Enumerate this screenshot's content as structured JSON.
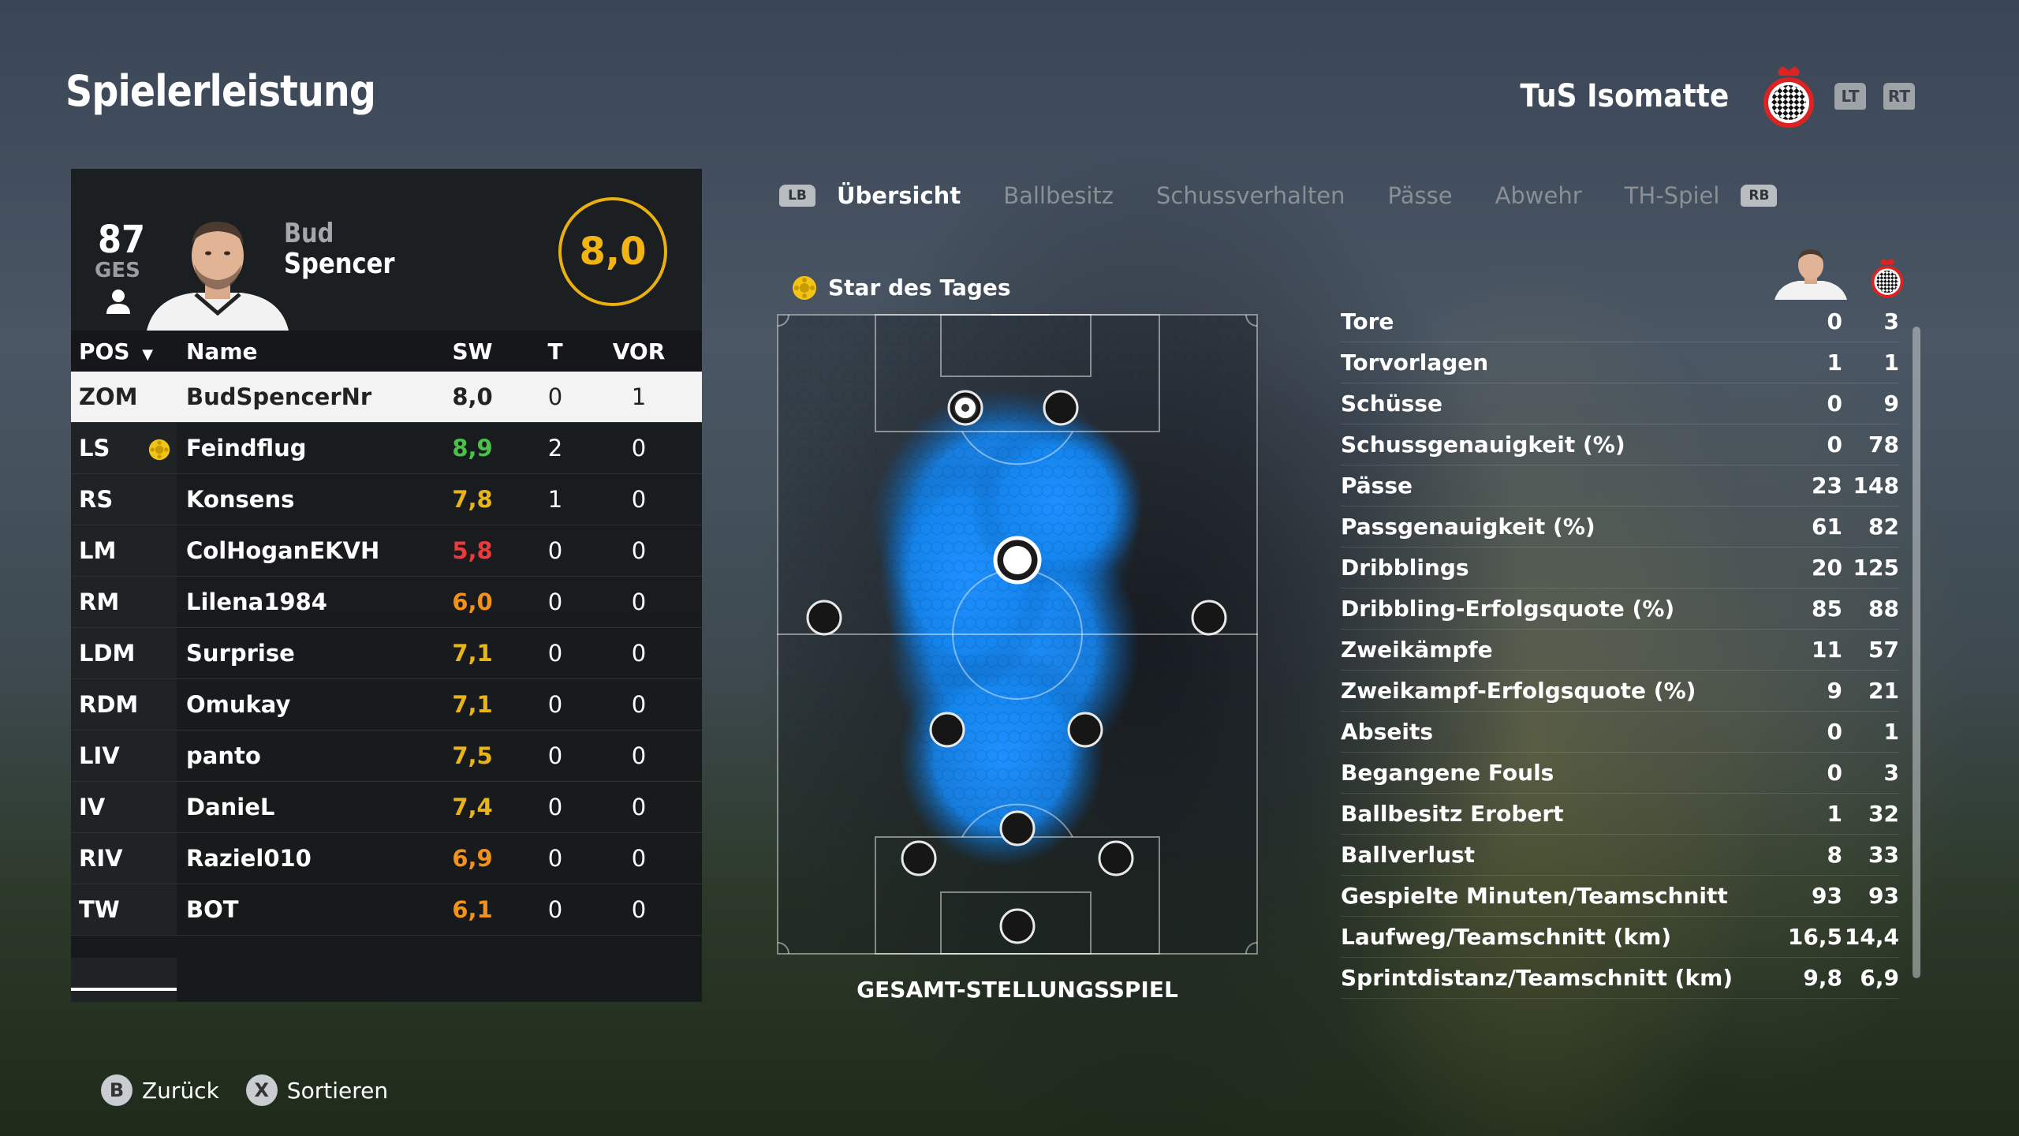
{
  "header": {
    "title": "Spielerleistung",
    "team_name": "TuS Isomatte",
    "trigger_left": "LT",
    "trigger_right": "RT"
  },
  "player": {
    "ovr": "87",
    "ovr_label": "GES",
    "first_name": "Bud",
    "last_name": "Spencer",
    "rating": "8,0"
  },
  "table": {
    "headers": {
      "pos": "POS",
      "name": "Name",
      "sw": "SW",
      "t": "T",
      "vor": "VOR"
    },
    "rows": [
      {
        "pos": "ZOM",
        "name": "BudSpencerNr",
        "sw": "8,0",
        "t": "0",
        "vor": "1",
        "color": "#222222",
        "selected": true
      },
      {
        "pos": "LS",
        "name": "Feindflug",
        "sw": "8,9",
        "t": "2",
        "vor": "0",
        "color": "#4cc14a",
        "star": true
      },
      {
        "pos": "RS",
        "name": "Konsens",
        "sw": "7,8",
        "t": "1",
        "vor": "0",
        "color": "#e9b41a"
      },
      {
        "pos": "LM",
        "name": "ColHoganEKVH",
        "sw": "5,8",
        "t": "0",
        "vor": "0",
        "color": "#ea3b3b"
      },
      {
        "pos": "RM",
        "name": "Lilena1984",
        "sw": "6,0",
        "t": "0",
        "vor": "0",
        "color": "#f0921c"
      },
      {
        "pos": "LDM",
        "name": "Surprise",
        "sw": "7,1",
        "t": "0",
        "vor": "0",
        "color": "#e9b41a"
      },
      {
        "pos": "RDM",
        "name": "Omukay",
        "sw": "7,1",
        "t": "0",
        "vor": "0",
        "color": "#e9b41a"
      },
      {
        "pos": "LIV",
        "name": "panto",
        "sw": "7,5",
        "t": "0",
        "vor": "0",
        "color": "#e9b41a"
      },
      {
        "pos": "IV",
        "name": "DanieL",
        "sw": "7,4",
        "t": "0",
        "vor": "0",
        "color": "#e9b41a"
      },
      {
        "pos": "RIV",
        "name": "Raziel010",
        "sw": "6,9",
        "t": "0",
        "vor": "0",
        "color": "#f0921c"
      },
      {
        "pos": "TW",
        "name": "BOT",
        "sw": "6,1",
        "t": "0",
        "vor": "0",
        "color": "#f0921c"
      }
    ]
  },
  "tabs": {
    "bumper_left": "LB",
    "bumper_right": "RB",
    "items": [
      "Übersicht",
      "Ballbesitz",
      "Schussverhalten",
      "Pässe",
      "Abwehr",
      "TH-Spiel"
    ]
  },
  "star_label": "Star des Tages",
  "pitch_label": "GESAMT-STELLUNGSSPIEL",
  "stats": [
    {
      "label": "Tore",
      "player": "0",
      "team": "3"
    },
    {
      "label": "Torvorlagen",
      "player": "1",
      "team": "1"
    },
    {
      "label": "Schüsse",
      "player": "0",
      "team": "9"
    },
    {
      "label": "Schussgenauigkeit (%)",
      "player": "0",
      "team": "78"
    },
    {
      "label": "Pässe",
      "player": "23",
      "team": "148"
    },
    {
      "label": "Passgenauigkeit (%)",
      "player": "61",
      "team": "82"
    },
    {
      "label": "Dribblings",
      "player": "20",
      "team": "125"
    },
    {
      "label": "Dribbling-Erfolgsquote (%)",
      "player": "85",
      "team": "88"
    },
    {
      "label": "Zweikämpfe",
      "player": "11",
      "team": "57"
    },
    {
      "label": "Zweikampf-Erfolgsquote (%)",
      "player": "9",
      "team": "21"
    },
    {
      "label": "Abseits",
      "player": "0",
      "team": "1"
    },
    {
      "label": "Begangene Fouls",
      "player": "0",
      "team": "3"
    },
    {
      "label": "Ballbesitz Erobert",
      "player": "1",
      "team": "32"
    },
    {
      "label": "Ballverlust",
      "player": "8",
      "team": "33"
    },
    {
      "label": "Gespielte Minuten/Teamschnitt",
      "player": "93",
      "team": "93"
    },
    {
      "label": "Laufweg/Teamschnitt (km)",
      "player": "16,5",
      "team": "14,4"
    },
    {
      "label": "Sprintdistanz/Teamschnitt (km)",
      "player": "9,8",
      "team": "6,9"
    }
  ],
  "footer": {
    "back_button": "B",
    "back_label": "Zurück",
    "sort_button": "X",
    "sort_label": "Sortieren"
  },
  "colors": {
    "accent_rating": "#f2b412",
    "heatmap": "#1e8fff"
  }
}
